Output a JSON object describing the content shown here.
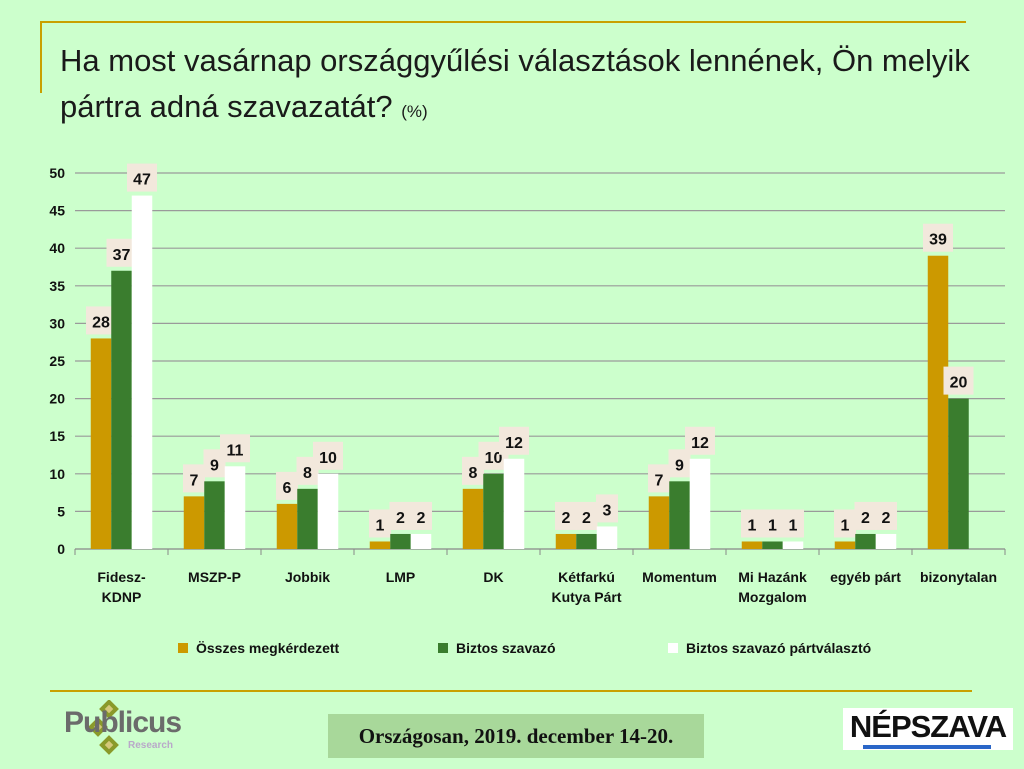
{
  "title_main": "Ha most vasárnap országgyűlési választások lennének, Ön melyik pártra adná szavazatát?",
  "title_unit": "(%)",
  "footer": {
    "logo_name": "Publicus",
    "logo_sub": "Research",
    "date_text": "Országosan, 2019. december 14-20.",
    "partner": "NÉPSZAVA"
  },
  "colors": {
    "series1": "#cc9900",
    "series2": "#3a7d2e",
    "series3": "#ffffff",
    "label_bg": "#f2e8dc",
    "grid": "#9a9a9a"
  },
  "chart_data": {
    "type": "bar",
    "title": "Ha most vasárnap országgyűlési választások lennének, Ön melyik pártra adná szavazatát? (%)",
    "categories": [
      [
        "Fidesz-",
        "KDNP"
      ],
      [
        "MSZP-P"
      ],
      [
        "Jobbik"
      ],
      [
        "LMP"
      ],
      [
        "DK"
      ],
      [
        "Kétfarkú",
        "Kutya Párt"
      ],
      [
        "Momentum"
      ],
      [
        "Mi Hazánk",
        "Mozgalom"
      ],
      [
        "egyéb párt"
      ],
      [
        "bizonytalan"
      ]
    ],
    "series": [
      {
        "name": "Összes megkérdezett",
        "values": [
          28,
          7,
          6,
          1,
          8,
          2,
          7,
          1,
          1,
          39
        ]
      },
      {
        "name": "Biztos szavazó",
        "values": [
          37,
          9,
          8,
          2,
          10,
          2,
          9,
          1,
          2,
          20
        ]
      },
      {
        "name": "Biztos szavazó pártválasztó",
        "values": [
          47,
          11,
          10,
          2,
          12,
          3,
          12,
          1,
          2,
          null
        ]
      }
    ],
    "ylim": [
      0,
      50
    ],
    "yticks": [
      0,
      5,
      10,
      15,
      20,
      25,
      30,
      35,
      40,
      45,
      50
    ],
    "grid": true,
    "legend": "bottom"
  }
}
